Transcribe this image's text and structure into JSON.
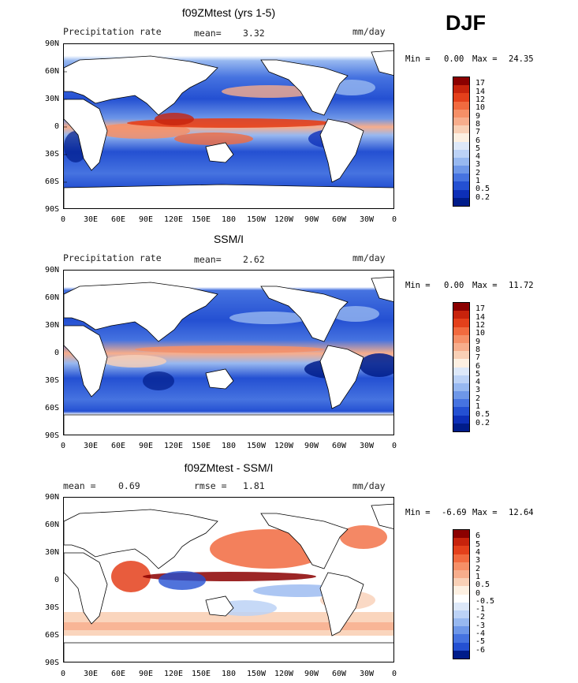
{
  "season": "DJF",
  "panels": [
    {
      "title": "f09ZMtest (yrs 1-5)",
      "left_text": "Precipitation rate",
      "stat_label": "mean=",
      "stat_value": "3.32",
      "units": "mm/day",
      "min_label": "Min =",
      "min_value": "0.00",
      "max_label": "Max =",
      "max_value": "24.35",
      "levels": [
        "17",
        "14",
        "12",
        "10",
        "9",
        "8",
        "7",
        "6",
        "5",
        "4",
        "3",
        "2",
        "1",
        "0.5",
        "0.2"
      ],
      "colors": [
        "#8b0000",
        "#c7230c",
        "#e4401b",
        "#f16a3f",
        "#f58f67",
        "#f7ad8c",
        "#f9d0b6",
        "#fdf0e2",
        "#dde8f9",
        "#bcd2f6",
        "#97b8f0",
        "#6e97e8",
        "#4673e0",
        "#2450d2",
        "#0d2fb8",
        "#001c8a"
      ]
    },
    {
      "title": "SSM/I",
      "left_text": "Precipitation rate",
      "stat_label": "mean=",
      "stat_value": "2.62",
      "units": "mm/day",
      "min_label": "Min =",
      "min_value": "0.00",
      "max_label": "Max =",
      "max_value": "11.72",
      "levels": [
        "17",
        "14",
        "12",
        "10",
        "9",
        "8",
        "7",
        "6",
        "5",
        "4",
        "3",
        "2",
        "1",
        "0.5",
        "0.2"
      ],
      "colors": [
        "#8b0000",
        "#c7230c",
        "#e4401b",
        "#f16a3f",
        "#f58f67",
        "#f7ad8c",
        "#f9d0b6",
        "#fdf0e2",
        "#dde8f9",
        "#bcd2f6",
        "#97b8f0",
        "#6e97e8",
        "#4673e0",
        "#2450d2",
        "#0d2fb8",
        "#001c8a"
      ]
    },
    {
      "title": "f09ZMtest - SSM/I",
      "left_text": "mean =",
      "left_value": "0.69",
      "stat_label": "rmse =",
      "stat_value": "1.81",
      "units": "mm/day",
      "min_label": "Min =",
      "min_value": "-6.69",
      "max_label": "Max =",
      "max_value": "12.64",
      "levels": [
        "6",
        "5",
        "4",
        "3",
        "2",
        "1",
        "0.5",
        "0",
        "-0.5",
        "-1",
        "-2",
        "-3",
        "-4",
        "-5",
        "-6"
      ],
      "colors": [
        "#8b0000",
        "#c7230c",
        "#e4401b",
        "#f16a3f",
        "#f58f67",
        "#f7ad8c",
        "#f9d0b6",
        "#fdf0e2",
        "#ffffff",
        "#dde8f9",
        "#bcd2f6",
        "#97b8f0",
        "#6e97e8",
        "#4673e0",
        "#2450d2",
        "#001c8a"
      ]
    }
  ],
  "lat_labels": [
    "90N",
    "60N",
    "30N",
    "0",
    "30S",
    "60S",
    "90S"
  ],
  "lon_labels": [
    "0",
    "30E",
    "60E",
    "90E",
    "120E",
    "150E",
    "180",
    "150W",
    "120W",
    "90W",
    "60W",
    "30W",
    "0"
  ]
}
